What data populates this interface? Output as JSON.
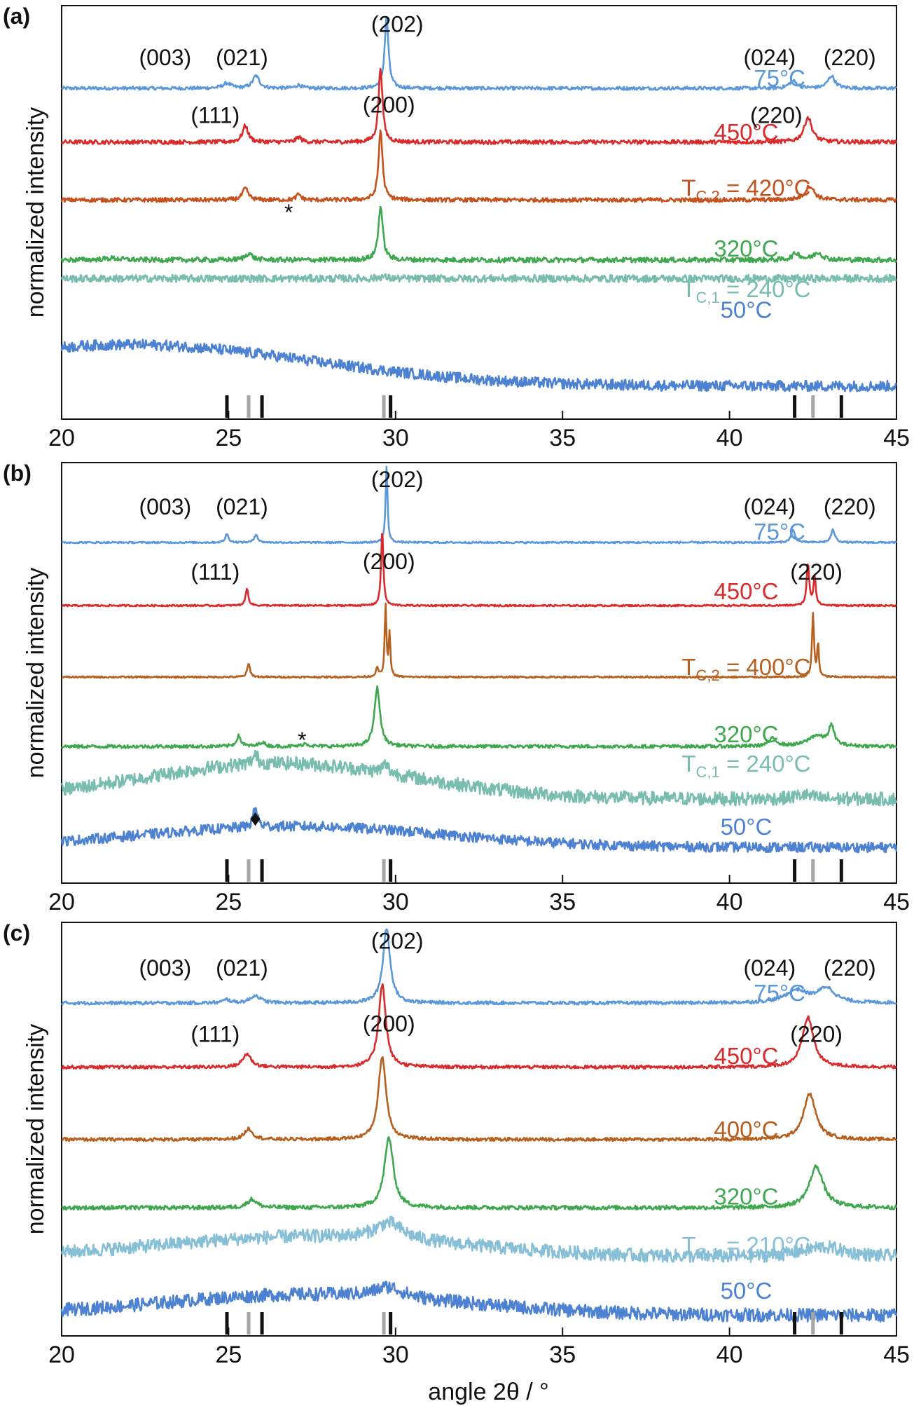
{
  "figure": {
    "ylabel": "normalized intensity",
    "xlabel": "angle 2θ / °",
    "star_marker": "*",
    "diamond_marker": "♦"
  },
  "colors": {
    "c75": "#5b97d9",
    "c450": "#d92b2b",
    "c420": "#c4521f",
    "c400b": "#b5601f",
    "c320": "#3fa84f",
    "c240": "#78bdb0",
    "c210": "#86bfd6",
    "c50": "#4d82d2",
    "tick_black": "#111111",
    "tick_grey": "#a6a6a6"
  },
  "chart_data": [
    {
      "panel": "(a)",
      "type": "line",
      "xlim": [
        20,
        45
      ],
      "xticks": [
        20,
        25,
        30,
        35,
        40,
        45
      ],
      "ylabel": "normalized intensity",
      "reference_ticks_black": [
        24.95,
        26.0,
        29.85,
        41.95,
        43.35
      ],
      "reference_ticks_grey": [
        25.6,
        29.65,
        42.5
      ],
      "series": [
        {
          "name": "75°C",
          "color_key": "c75",
          "baseline": 0.2,
          "noise": 0.004,
          "peaks": [
            [
              24.95,
              0.012,
              0.15
            ],
            [
              25.82,
              0.03,
              0.12
            ],
            [
              27.1,
              0.008,
              0.1
            ],
            [
              29.73,
              0.17,
              0.07
            ],
            [
              41.9,
              0.018,
              0.14
            ],
            [
              43.05,
              0.03,
              0.13
            ]
          ],
          "labels": [
            {
              "text": "75°C",
              "x": 41.5,
              "y": 0.195
            }
          ]
        },
        {
          "name": "450°C",
          "color_key": "c450",
          "baseline": 0.33,
          "noise": 0.005,
          "peaks": [
            [
              25.5,
              0.04,
              0.1
            ],
            [
              27.1,
              0.012,
              0.09
            ],
            [
              29.55,
              0.18,
              0.07
            ],
            [
              42.35,
              0.06,
              0.14
            ]
          ],
          "labels": [
            {
              "text": "450°C",
              "x": 40.5,
              "y": 0.325
            }
          ]
        },
        {
          "name": "T_C,2 = 420°C",
          "color_key": "c420",
          "baseline": 0.47,
          "noise": 0.005,
          "peaks": [
            [
              25.5,
              0.028,
              0.1
            ],
            [
              27.1,
              0.014,
              0.08
            ],
            [
              29.55,
              0.17,
              0.07
            ],
            [
              42.4,
              0.034,
              0.16
            ]
          ],
          "labels": [
            {
              "text": "T",
              "sub": "C,2",
              "rest": " = 420°C",
              "x": 40.5,
              "y": 0.46
            }
          ]
        },
        {
          "name": "320°C",
          "color_key": "c320",
          "baseline": 0.615,
          "noise": 0.006,
          "peaks": [
            [
              21.5,
              0.004,
              0.3
            ],
            [
              25.6,
              0.016,
              0.12
            ],
            [
              29.55,
              0.13,
              0.08
            ],
            [
              42.0,
              0.016,
              0.14
            ],
            [
              42.65,
              0.018,
              0.15
            ]
          ],
          "labels": [
            {
              "text": "320°C",
              "x": 40.5,
              "y": 0.607
            }
          ]
        },
        {
          "name": "T_C,1 = 240°C",
          "color_key": "c240",
          "baseline": 0.66,
          "noise": 0.009,
          "peaks": [
            [
              29.6,
              0.005,
              0.12
            ]
          ],
          "labels": [
            {
              "text": "T",
              "sub": "C,1",
              "rest": " = 240°C",
              "x": 40.5,
              "y": 0.705
            }
          ]
        },
        {
          "name": "50°C",
          "color_key": "c50",
          "baseline": 0.92,
          "noise": 0.013,
          "hump": [
            22.0,
            0.1,
            5.5
          ],
          "peaks": [],
          "labels": [
            {
              "text": "50°C",
              "x": 40.5,
              "y": 0.755
            }
          ]
        }
      ],
      "annotations": [
        {
          "text": "(202)",
          "x": 30.05,
          "y": 0.045
        },
        {
          "text": "(003)",
          "x": 23.1,
          "y": 0.125
        },
        {
          "text": "(021)",
          "x": 25.4,
          "y": 0.125
        },
        {
          "text": "(024)",
          "x": 41.2,
          "y": 0.125
        },
        {
          "text": "(220)",
          "x": 43.6,
          "y": 0.125
        },
        {
          "text": "(111)",
          "x": 24.6,
          "y": 0.265
        },
        {
          "text": "(200)",
          "x": 29.8,
          "y": 0.24
        },
        {
          "text": "(220)",
          "x": 41.4,
          "y": 0.265
        },
        {
          "text": "*",
          "x": 26.8,
          "y": 0.5
        }
      ]
    },
    {
      "panel": "(b)",
      "type": "line",
      "xlim": [
        20,
        45
      ],
      "xticks": [
        20,
        25,
        30,
        35,
        40,
        45
      ],
      "ylabel": "normalized intensity",
      "reference_ticks_black": [
        24.95,
        26.0,
        29.85,
        41.95,
        43.35
      ],
      "reference_ticks_grey": [
        25.6,
        29.65,
        42.5
      ],
      "series": [
        {
          "name": "75°C",
          "color_key": "c75",
          "baseline": 0.19,
          "noise": 0.002,
          "peaks": [
            [
              24.95,
              0.02,
              0.06
            ],
            [
              25.82,
              0.02,
              0.06
            ],
            [
              29.73,
              0.18,
              0.035
            ],
            [
              41.9,
              0.03,
              0.07
            ],
            [
              43.1,
              0.03,
              0.07
            ]
          ],
          "labels": [
            {
              "text": "75°C",
              "x": 41.5,
              "y": 0.183
            }
          ]
        },
        {
          "name": "450°C",
          "color_key": "c450",
          "baseline": 0.34,
          "noise": 0.002,
          "peaks": [
            [
              25.55,
              0.04,
              0.05
            ],
            [
              29.6,
              0.18,
              0.04
            ],
            [
              42.35,
              0.1,
              0.045
            ],
            [
              42.55,
              0.07,
              0.04
            ]
          ],
          "labels": [
            {
              "text": "450°C",
              "x": 40.5,
              "y": 0.325
            }
          ]
        },
        {
          "name": "T_C,2 = 400°C",
          "color_key": "c400b",
          "baseline": 0.51,
          "noise": 0.002,
          "peaks": [
            [
              25.6,
              0.032,
              0.05
            ],
            [
              29.45,
              0.02,
              0.05
            ],
            [
              29.7,
              0.17,
              0.03
            ],
            [
              29.82,
              0.1,
              0.03
            ],
            [
              42.5,
              0.15,
              0.035
            ],
            [
              42.65,
              0.08,
              0.03
            ]
          ],
          "labels": [
            {
              "text": "T",
              "sub": "C,2",
              "rest": " = 400°C",
              "x": 40.5,
              "y": 0.505
            }
          ]
        },
        {
          "name": "320°C",
          "color_key": "c320",
          "baseline": 0.675,
          "noise": 0.004,
          "peaks": [
            [
              25.3,
              0.025,
              0.08
            ],
            [
              26.0,
              0.01,
              0.1
            ],
            [
              27.3,
              0.007,
              0.1
            ],
            [
              29.45,
              0.14,
              0.1
            ],
            [
              41.3,
              0.018,
              0.15
            ],
            [
              42.6,
              0.025,
              0.3
            ],
            [
              43.05,
              0.045,
              0.1
            ]
          ],
          "labels": [
            {
              "text": "320°C",
              "x": 40.5,
              "y": 0.665
            }
          ]
        },
        {
          "name": "T_C,1 = 240°C",
          "color_key": "c240",
          "baseline": 0.8,
          "noise": 0.016,
          "hump": [
            26.5,
            0.085,
            4.0
          ],
          "peaks": [
            [
              25.8,
              0.02,
              0.1
            ],
            [
              29.7,
              0.02,
              0.12
            ],
            [
              42.2,
              0.01,
              0.3
            ]
          ],
          "labels": [
            {
              "text": "T",
              "sub": "C,1",
              "rest": " = 240°C",
              "x": 40.5,
              "y": 0.735
            }
          ]
        },
        {
          "name": "50°C",
          "color_key": "c50",
          "baseline": 0.915,
          "noise": 0.012,
          "hump": [
            27.0,
            0.05,
            4.5
          ],
          "peaks": [
            [
              25.8,
              0.045,
              0.08
            ]
          ],
          "labels": [
            {
              "text": "50°C",
              "x": 40.5,
              "y": 0.885
            }
          ]
        }
      ],
      "annotations": [
        {
          "text": "(202)",
          "x": 30.05,
          "y": 0.04
        },
        {
          "text": "(003)",
          "x": 23.1,
          "y": 0.105
        },
        {
          "text": "(021)",
          "x": 25.4,
          "y": 0.105
        },
        {
          "text": "(024)",
          "x": 41.2,
          "y": 0.105
        },
        {
          "text": "(220)",
          "x": 43.6,
          "y": 0.105
        },
        {
          "text": "(111)",
          "x": 24.6,
          "y": 0.26
        },
        {
          "text": "(200)",
          "x": 29.8,
          "y": 0.235
        },
        {
          "text": "(220)",
          "x": 42.6,
          "y": 0.26
        },
        {
          "text": "*",
          "x": 27.2,
          "y": 0.66
        },
        {
          "text": "♦",
          "x": 25.8,
          "y": 0.845
        }
      ]
    },
    {
      "panel": "(c)",
      "type": "line",
      "xlim": [
        20,
        45
      ],
      "xticks": [
        20,
        25,
        30,
        35,
        40,
        45
      ],
      "ylabel": "normalized intensity",
      "reference_ticks_black": [
        24.95,
        26.0,
        29.85,
        41.95,
        43.35
      ],
      "reference_ticks_grey": [
        25.6,
        29.65,
        42.5
      ],
      "series": [
        {
          "name": "75°C",
          "color_key": "c75",
          "baseline": 0.195,
          "noise": 0.004,
          "peaks": [
            [
              24.95,
              0.008,
              0.12
            ],
            [
              25.8,
              0.018,
              0.18
            ],
            [
              29.73,
              0.18,
              0.13
            ],
            [
              42.0,
              0.03,
              0.4
            ],
            [
              42.9,
              0.035,
              0.3
            ]
          ],
          "labels": [
            {
              "text": "75°C",
              "x": 41.5,
              "y": 0.19
            }
          ]
        },
        {
          "name": "450°C",
          "color_key": "c450",
          "baseline": 0.35,
          "noise": 0.004,
          "peaks": [
            [
              25.55,
              0.032,
              0.15
            ],
            [
              29.6,
              0.2,
              0.13
            ],
            [
              42.35,
              0.12,
              0.2
            ]
          ],
          "labels": [
            {
              "text": "450°C",
              "x": 40.5,
              "y": 0.342
            }
          ]
        },
        {
          "name": "400°C",
          "color_key": "c400b",
          "baseline": 0.525,
          "noise": 0.004,
          "peaks": [
            [
              25.6,
              0.026,
              0.15
            ],
            [
              29.6,
              0.2,
              0.14
            ],
            [
              42.4,
              0.11,
              0.22
            ]
          ],
          "labels": [
            {
              "text": "400°C",
              "x": 40.5,
              "y": 0.52
            }
          ]
        },
        {
          "name": "320°C",
          "color_key": "c320",
          "baseline": 0.69,
          "noise": 0.005,
          "peaks": [
            [
              25.7,
              0.02,
              0.17
            ],
            [
              29.8,
              0.17,
              0.16
            ],
            [
              42.6,
              0.1,
              0.25
            ]
          ],
          "labels": [
            {
              "text": "320°C",
              "x": 40.5,
              "y": 0.682
            }
          ]
        },
        {
          "name": "T_C,1 = 210°C",
          "color_key": "c210",
          "baseline": 0.81,
          "noise": 0.016,
          "hump": [
            27.5,
            0.05,
            4.5
          ],
          "peaks": [
            [
              29.8,
              0.04,
              0.5
            ],
            [
              42.8,
              0.025,
              0.8
            ]
          ],
          "labels": [
            {
              "text": "T",
              "sub": "C,1",
              "rest": " = 210°C",
              "x": 40.5,
              "y": 0.8
            }
          ]
        },
        {
          "name": "50°C",
          "color_key": "c50",
          "baseline": 0.95,
          "noise": 0.016,
          "hump": [
            27.5,
            0.05,
            4.5
          ],
          "peaks": [
            [
              29.8,
              0.025,
              0.5
            ]
          ],
          "labels": [
            {
              "text": "50°C",
              "x": 40.5,
              "y": 0.91
            }
          ]
        }
      ],
      "annotations": [
        {
          "text": "(202)",
          "x": 30.05,
          "y": 0.045
        },
        {
          "text": "(003)",
          "x": 23.1,
          "y": 0.11
        },
        {
          "text": "(021)",
          "x": 25.4,
          "y": 0.11
        },
        {
          "text": "(024)",
          "x": 41.2,
          "y": 0.11
        },
        {
          "text": "(220)",
          "x": 43.6,
          "y": 0.11
        },
        {
          "text": "(111)",
          "x": 24.6,
          "y": 0.27
        },
        {
          "text": "(200)",
          "x": 29.8,
          "y": 0.245
        },
        {
          "text": "(220)",
          "x": 42.6,
          "y": 0.27
        }
      ]
    }
  ]
}
